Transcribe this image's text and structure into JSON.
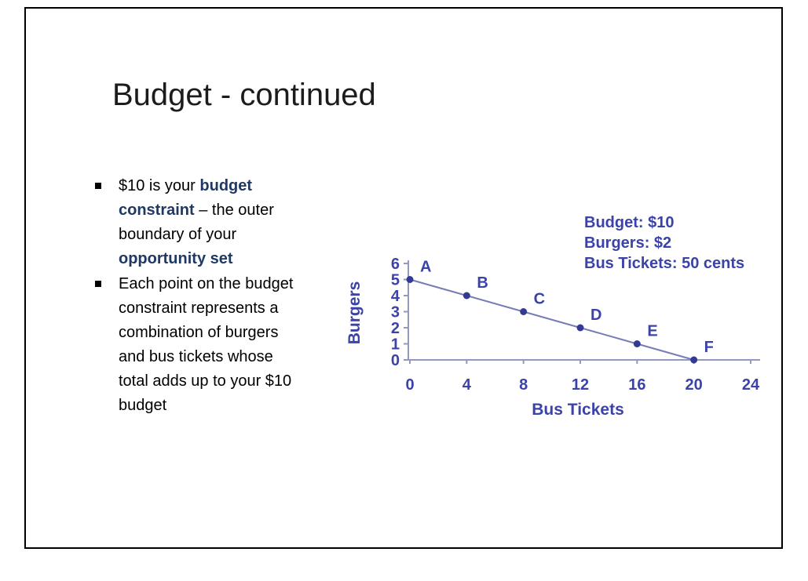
{
  "slide": {
    "title": "Budget - continued",
    "bullets": [
      {
        "segments": [
          {
            "text": "$10 is your ",
            "bold": false
          },
          {
            "text": "budget constraint",
            "bold": true
          },
          {
            "text": " – the outer boundary of your ",
            "bold": false
          },
          {
            "text": "opportunity set",
            "bold": true
          }
        ]
      },
      {
        "segments": [
          {
            "text": "Each point on the budget constraint represents a combination of burgers and bus tickets whose total adds up to your $10 budget",
            "bold": false
          }
        ]
      }
    ]
  },
  "chart_data": {
    "type": "line",
    "title": "",
    "x": [
      0,
      4,
      8,
      12,
      16,
      20
    ],
    "y": [
      5,
      4,
      3,
      2,
      1,
      0
    ],
    "point_labels": [
      "A",
      "B",
      "C",
      "D",
      "E",
      "F"
    ],
    "xlabel": "Bus Tickets",
    "ylabel": "Burgers",
    "x_ticks": [
      0,
      4,
      8,
      12,
      16,
      20,
      24
    ],
    "y_ticks": [
      0,
      1,
      2,
      3,
      4,
      5,
      6
    ],
    "xlim": [
      0,
      24
    ],
    "ylim": [
      0,
      6
    ],
    "grid": false,
    "legend_position": "top-right-annotation",
    "annotations": [
      "Budget: $10",
      "Burgers: $2",
      "Bus Tickets: 50 cents"
    ],
    "line_color": "#767cb5",
    "point_color": "#323b91",
    "axis_color": "#9298c0",
    "text_color": "#3c43a8"
  },
  "colors": {
    "bold_text_navy": "#1f3864",
    "slide_border": "#000000",
    "body_text": "#000000"
  }
}
